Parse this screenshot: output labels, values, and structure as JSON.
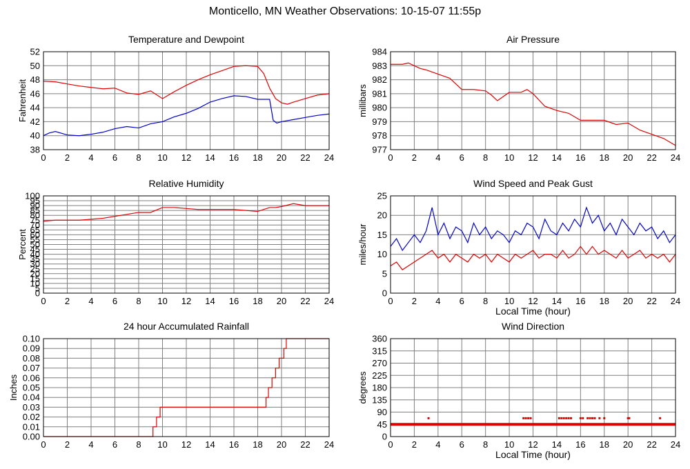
{
  "page": {
    "title": "Monticello, MN Weather Observations: 10-15-07 11:55p"
  },
  "colors": {
    "red": "#e00000",
    "blue": "#0000cc",
    "grid": "#7f7f7f",
    "frame": "#000000"
  },
  "chart_data": [
    {
      "id": "temp",
      "type": "line",
      "title": "Temperature and Dewpoint",
      "xlabel": "",
      "ylabel": "Fahrenheit",
      "xlim": [
        0,
        24
      ],
      "ylim": [
        38,
        52
      ],
      "xticks": [
        0,
        2,
        4,
        6,
        8,
        10,
        12,
        14,
        16,
        18,
        20,
        22,
        24
      ],
      "yticks": [
        38,
        40,
        42,
        44,
        46,
        48,
        50,
        52
      ],
      "grid": true,
      "series": [
        {
          "color": "red",
          "x": [
            0,
            1,
            2,
            3,
            4,
            5,
            6,
            7,
            8,
            9,
            10,
            11,
            12,
            13,
            14,
            15,
            16,
            17,
            18,
            18.5,
            19,
            19.5,
            20,
            20.5,
            21,
            22,
            23,
            24
          ],
          "y": [
            47.8,
            47.7,
            47.4,
            47.1,
            46.9,
            46.7,
            46.8,
            46.1,
            45.9,
            46.4,
            45.3,
            46.3,
            47.2,
            48.0,
            48.7,
            49.3,
            49.9,
            50.0,
            49.9,
            48.9,
            46.8,
            45.3,
            44.7,
            44.5,
            44.8,
            45.3,
            45.8,
            46.0
          ]
        },
        {
          "color": "blue",
          "x": [
            0,
            0.5,
            1,
            2,
            3,
            4,
            5,
            6,
            7,
            8,
            9,
            10,
            11,
            12,
            13,
            14,
            15,
            16,
            17,
            18,
            19,
            19.3,
            19.6,
            20,
            21,
            22,
            23,
            24
          ],
          "y": [
            40.0,
            40.4,
            40.6,
            40.1,
            40.0,
            40.2,
            40.5,
            41.0,
            41.3,
            41.1,
            41.7,
            42.0,
            42.7,
            43.2,
            43.9,
            44.8,
            45.3,
            45.7,
            45.6,
            45.2,
            45.2,
            42.2,
            41.8,
            42.0,
            42.3,
            42.6,
            42.9,
            43.1
          ]
        }
      ]
    },
    {
      "id": "pressure",
      "type": "line",
      "title": "Air Pressure",
      "xlabel": "",
      "ylabel": "millibars",
      "xlim": [
        0,
        24
      ],
      "ylim": [
        977,
        984
      ],
      "xticks": [
        0,
        2,
        4,
        6,
        8,
        10,
        12,
        14,
        16,
        18,
        20,
        22,
        24
      ],
      "yticks": [
        977,
        978,
        979,
        980,
        981,
        982,
        983,
        984
      ],
      "grid": true,
      "series": [
        {
          "color": "red",
          "x": [
            0,
            1,
            1.5,
            2,
            2.5,
            3,
            4,
            5,
            6,
            7,
            8,
            8.5,
            9,
            10,
            11,
            11.5,
            12,
            13,
            14,
            15,
            16,
            17,
            18,
            19,
            20,
            21,
            22,
            23,
            24
          ],
          "y": [
            983.1,
            983.1,
            983.2,
            983.0,
            982.8,
            982.7,
            982.4,
            982.1,
            981.3,
            981.3,
            981.2,
            980.9,
            980.5,
            981.1,
            981.1,
            981.3,
            981.0,
            980.1,
            979.8,
            979.6,
            979.1,
            979.1,
            979.1,
            978.8,
            978.9,
            978.4,
            978.1,
            977.8,
            977.3
          ]
        }
      ]
    },
    {
      "id": "humidity",
      "type": "line",
      "title": "Relative Humidity",
      "xlabel": "",
      "ylabel": "Percent",
      "xlim": [
        0,
        24
      ],
      "ylim": [
        0,
        100
      ],
      "xticks": [
        0,
        2,
        4,
        6,
        8,
        10,
        12,
        14,
        16,
        18,
        20,
        22,
        24
      ],
      "yticks": [
        0,
        5,
        10,
        15,
        20,
        25,
        30,
        35,
        40,
        45,
        50,
        55,
        60,
        65,
        70,
        75,
        80,
        85,
        90,
        95,
        100
      ],
      "grid": true,
      "series": [
        {
          "color": "red",
          "x": [
            0,
            1,
            2,
            3,
            4,
            5,
            6,
            7,
            8,
            9,
            10,
            11,
            12,
            13,
            14,
            15,
            16,
            17,
            18,
            18.5,
            19,
            19.5,
            20,
            21,
            22,
            23,
            24
          ],
          "y": [
            74,
            75,
            75,
            75,
            76,
            77,
            79,
            81,
            83,
            83,
            88,
            88,
            87,
            86,
            86,
            86,
            86,
            85,
            84,
            86,
            88,
            88,
            89,
            92,
            90,
            90,
            90
          ]
        }
      ]
    },
    {
      "id": "wind",
      "type": "line",
      "title": "Wind Speed and Peak Gust",
      "xlabel": "Local Time (hour)",
      "ylabel": "miles/hour",
      "xlim": [
        0,
        24
      ],
      "ylim": [
        0,
        25
      ],
      "xticks": [
        0,
        2,
        4,
        6,
        8,
        10,
        12,
        14,
        16,
        18,
        20,
        22,
        24
      ],
      "yticks": [
        0,
        5,
        10,
        15,
        20,
        25
      ],
      "grid": true,
      "series": [
        {
          "color": "blue",
          "x": [
            0,
            0.5,
            1,
            1.5,
            2,
            2.5,
            3,
            3.5,
            4,
            4.5,
            5,
            5.5,
            6,
            6.5,
            7,
            7.5,
            8,
            8.5,
            9,
            9.5,
            10,
            10.5,
            11,
            11.5,
            12,
            12.5,
            13,
            13.5,
            14,
            14.5,
            15,
            15.5,
            16,
            16.5,
            17,
            17.5,
            18,
            18.5,
            19,
            19.5,
            20,
            20.5,
            21,
            21.5,
            22,
            22.5,
            23,
            23.5,
            24
          ],
          "y": [
            12,
            14,
            11,
            13,
            15,
            13,
            16,
            22,
            15,
            18,
            14,
            17,
            16,
            13,
            18,
            15,
            17,
            14,
            16,
            15,
            13,
            16,
            15,
            18,
            17,
            14,
            19,
            16,
            15,
            18,
            16,
            19,
            17,
            22,
            18,
            20,
            16,
            18,
            15,
            19,
            17,
            15,
            18,
            16,
            17,
            14,
            16,
            13,
            15
          ]
        },
        {
          "color": "red",
          "x": [
            0,
            0.5,
            1,
            1.5,
            2,
            2.5,
            3,
            3.5,
            4,
            4.5,
            5,
            5.5,
            6,
            6.5,
            7,
            7.5,
            8,
            8.5,
            9,
            9.5,
            10,
            10.5,
            11,
            11.5,
            12,
            12.5,
            13,
            13.5,
            14,
            14.5,
            15,
            15.5,
            16,
            16.5,
            17,
            17.5,
            18,
            18.5,
            19,
            19.5,
            20,
            20.5,
            21,
            21.5,
            22,
            22.5,
            23,
            23.5,
            24
          ],
          "y": [
            7,
            8,
            6,
            7,
            8,
            9,
            10,
            11,
            9,
            10,
            8,
            10,
            9,
            8,
            10,
            9,
            10,
            8,
            10,
            9,
            8,
            10,
            9,
            10,
            11,
            9,
            10,
            10,
            9,
            11,
            9,
            10,
            12,
            10,
            12,
            10,
            11,
            10,
            9,
            11,
            9,
            10,
            11,
            9,
            10,
            9,
            10,
            8,
            10
          ]
        }
      ]
    },
    {
      "id": "rain",
      "type": "line",
      "title": "24 hour Accumulated Rainfall",
      "xlabel": "",
      "ylabel": "Inches",
      "xlim": [
        0,
        24
      ],
      "ylim": [
        0,
        0.1
      ],
      "xticks": [
        0,
        2,
        4,
        6,
        8,
        10,
        12,
        14,
        16,
        18,
        20,
        22,
        24
      ],
      "yticks": [
        "0.00",
        "0.01",
        "0.02",
        "0.03",
        "0.04",
        "0.05",
        "0.06",
        "0.07",
        "0.08",
        "0.09",
        "0.10"
      ],
      "grid": true,
      "series": [
        {
          "color": "red",
          "step": true,
          "x": [
            0,
            9.2,
            9.5,
            9.8,
            18.5,
            18.7,
            18.9,
            19.2,
            19.5,
            19.8,
            20.2,
            20.4,
            24
          ],
          "y": [
            0,
            0.01,
            0.02,
            0.03,
            0.03,
            0.04,
            0.05,
            0.06,
            0.07,
            0.08,
            0.09,
            0.1,
            0.1
          ]
        }
      ]
    },
    {
      "id": "winddir",
      "type": "scatter",
      "title": "Wind Direction",
      "xlabel": "Local Time (hour)",
      "ylabel": "degrees",
      "xlim": [
        0,
        24
      ],
      "ylim": [
        0,
        360
      ],
      "xticks": [
        0,
        2,
        4,
        6,
        8,
        10,
        12,
        14,
        16,
        18,
        20,
        22,
        24
      ],
      "yticks": [
        0,
        45,
        90,
        135,
        180,
        225,
        270,
        315,
        360
      ],
      "grid": true,
      "baseline": 45,
      "series": [
        {
          "color": "red",
          "x": [
            3.2,
            11.2,
            11.4,
            11.6,
            11.8,
            14.2,
            14.4,
            14.6,
            14.8,
            15.0,
            15.2,
            16.0,
            16.2,
            16.6,
            16.8,
            17.0,
            17.2,
            17.6,
            18.0,
            20.0,
            20.1,
            22.7
          ],
          "y": [
            67.5,
            67.5,
            67.5,
            67.5,
            67.5,
            67.5,
            67.5,
            67.5,
            67.5,
            67.5,
            67.5,
            67.5,
            67.5,
            67.5,
            67.5,
            67.5,
            67.5,
            67.5,
            67.5,
            67.5,
            67.5,
            67.5
          ]
        }
      ]
    }
  ]
}
